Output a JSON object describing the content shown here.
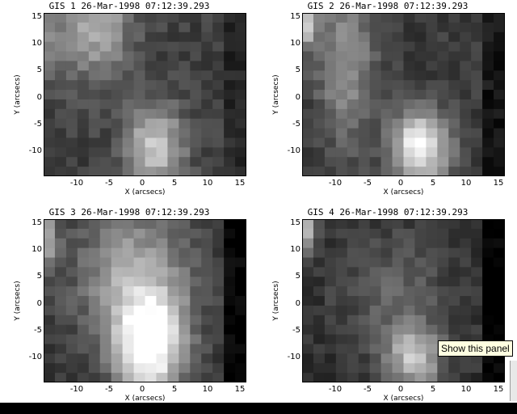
{
  "panels": [
    {
      "title": "GIS 1 26-Mar-1998 07:12:39.293",
      "xlabel": "X (arcsecs)",
      "ylabel": "Y (arcsecs)",
      "xticks": [
        "-10",
        "-5",
        "0",
        "5",
        "10",
        "15"
      ],
      "yticks": [
        "15",
        "10",
        "5",
        "0",
        "-5",
        "-10"
      ],
      "xlim": [
        -14.5,
        16.5
      ],
      "ylim": [
        -14.0,
        16.5
      ]
    },
    {
      "title": "GIS 2 26-Mar-1998 07:12:39.293",
      "xlabel": "X (arcsecs)",
      "ylabel": "Y (arcsecs)",
      "xticks": [
        "-10",
        "-5",
        "0",
        "5",
        "10",
        "15"
      ],
      "yticks": [
        "15",
        "10",
        "5",
        "0",
        "-5",
        "-10"
      ],
      "xlim": [
        -14.5,
        16.5
      ],
      "ylim": [
        -14.0,
        16.5
      ]
    },
    {
      "title": "GIS 3 26-Mar-1998 07:12:39.293",
      "xlabel": "X (arcsecs)",
      "ylabel": "Y (arcsecs)",
      "xticks": [
        "-10",
        "-5",
        "0",
        "5",
        "10",
        "15"
      ],
      "yticks": [
        "15",
        "10",
        "5",
        "0",
        "-5",
        "-10"
      ],
      "xlim": [
        -14.5,
        16.5
      ],
      "ylim": [
        -14.0,
        16.5
      ]
    },
    {
      "title": "GIS 4 26-Mar-1998 07:12:39.293",
      "xlabel": "X (arcsecs)",
      "ylabel": "Y (arcsecs)",
      "xticks": [
        "-10",
        "-5",
        "0",
        "5",
        "10",
        "15"
      ],
      "yticks": [
        "15",
        "10",
        "5",
        "0",
        "-5",
        "-10"
      ],
      "xlim": [
        -14.5,
        16.5
      ],
      "ylim": [
        -14.0,
        16.5
      ]
    }
  ],
  "tooltip": {
    "text": "Show this panel"
  },
  "colors": {
    "image_low": "#000000",
    "image_high": "#ffffff",
    "tooltip_bg": "#ffffe1"
  }
}
